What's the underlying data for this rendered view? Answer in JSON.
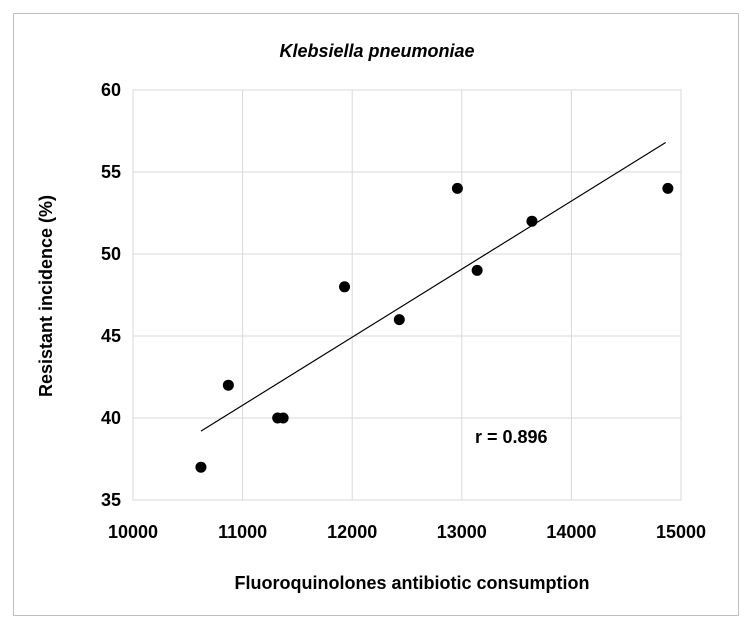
{
  "chart_data": {
    "type": "scatter",
    "title": "Klebsiella pneumoniae",
    "xlabel": "Fluoroquinolones antibiotic consumption",
    "ylabel": "Resistant incidence (%)",
    "xlim": [
      10000,
      15000
    ],
    "ylim": [
      35,
      60
    ],
    "x_ticks": [
      "10000",
      "11000",
      "12000",
      "13000",
      "14000",
      "15000"
    ],
    "y_ticks": [
      "35",
      "40",
      "45",
      "50",
      "55",
      "60"
    ],
    "grid": true,
    "legend": "none",
    "series": [
      {
        "points": [
          {
            "x": 10620,
            "y": 37
          },
          {
            "x": 10870,
            "y": 42
          },
          {
            "x": 11320,
            "y": 40
          },
          {
            "x": 11370,
            "y": 40
          },
          {
            "x": 11930,
            "y": 48
          },
          {
            "x": 12430,
            "y": 46
          },
          {
            "x": 12960,
            "y": 54
          },
          {
            "x": 13140,
            "y": 49
          },
          {
            "x": 13640,
            "y": 52
          },
          {
            "x": 14880,
            "y": 54
          }
        ],
        "color": "#000000"
      }
    ],
    "trendline": {
      "type": "linear",
      "from": {
        "x": 10620,
        "y": 39.2
      },
      "to": {
        "x": 14860,
        "y": 56.8
      },
      "color": "#000000"
    },
    "annotation": "r = 0.896"
  }
}
